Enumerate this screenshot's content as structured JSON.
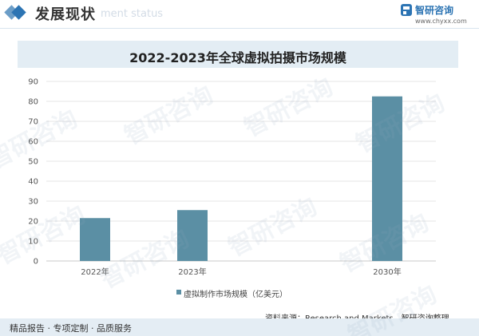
{
  "header": {
    "title": "发展现状",
    "subtitle": "ment status"
  },
  "logo": {
    "name": "智研咨询",
    "url": "www.chyxx.com"
  },
  "colors": {
    "brand": "#2c74b3",
    "bar": "#5b8fa4",
    "title_band": "#e3edf4",
    "grid": "#e5e5e5"
  },
  "chart_data": {
    "type": "bar",
    "title": "2022-2023年全球虚拟拍摄市场规模",
    "categories": [
      "2022年",
      "2023年",
      "",
      "2030年"
    ],
    "series": [
      {
        "name": "虚拟制作市场规模（亿美元）",
        "values": [
          21.5,
          25.5,
          null,
          82.5
        ]
      }
    ],
    "ylim": [
      0,
      90
    ],
    "yticks": [
      0,
      10,
      20,
      30,
      40,
      50,
      60,
      70,
      80,
      90
    ],
    "grid": true,
    "legend": "bottom",
    "xlabel": "",
    "ylabel": ""
  },
  "source": "资料来源：Research and Markets、智研咨询整理",
  "footer": "精品报告 · 专项定制 · 品质服务",
  "watermark": "智研咨询"
}
